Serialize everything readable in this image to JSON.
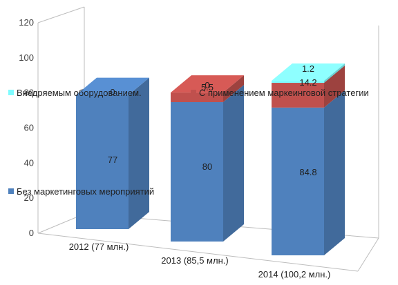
{
  "chart_data": {
    "type": "bar",
    "stacked": true,
    "three_d": true,
    "categories": [
      "2012 (77 млн.)",
      "2013 (85,5 млн.)",
      "2014 (100,2 млн.)"
    ],
    "series": [
      {
        "name": "Без маркетинговых мероприятий",
        "values": [
          77,
          80,
          84.8
        ],
        "labels": [
          "77",
          "80",
          "84.8"
        ],
        "color": "#4f81bd"
      },
      {
        "name": "С применением маркеинговой стратегии",
        "values": [
          0,
          5.5,
          14.2
        ],
        "labels": [
          "",
          "5.5",
          "14.2"
        ],
        "color": "#c0504d"
      },
      {
        "name": "Внедряемым оборудованием.",
        "values": [
          0,
          0,
          1.2
        ],
        "labels": [
          "0",
          "0",
          "1.2"
        ],
        "color": "#7ffcff"
      }
    ],
    "yticks": [
      "0",
      "20",
      "40",
      "60",
      "80",
      "100",
      "120"
    ],
    "ylim": [
      0,
      120
    ],
    "grid": false,
    "legend": "overlaid on plot"
  }
}
